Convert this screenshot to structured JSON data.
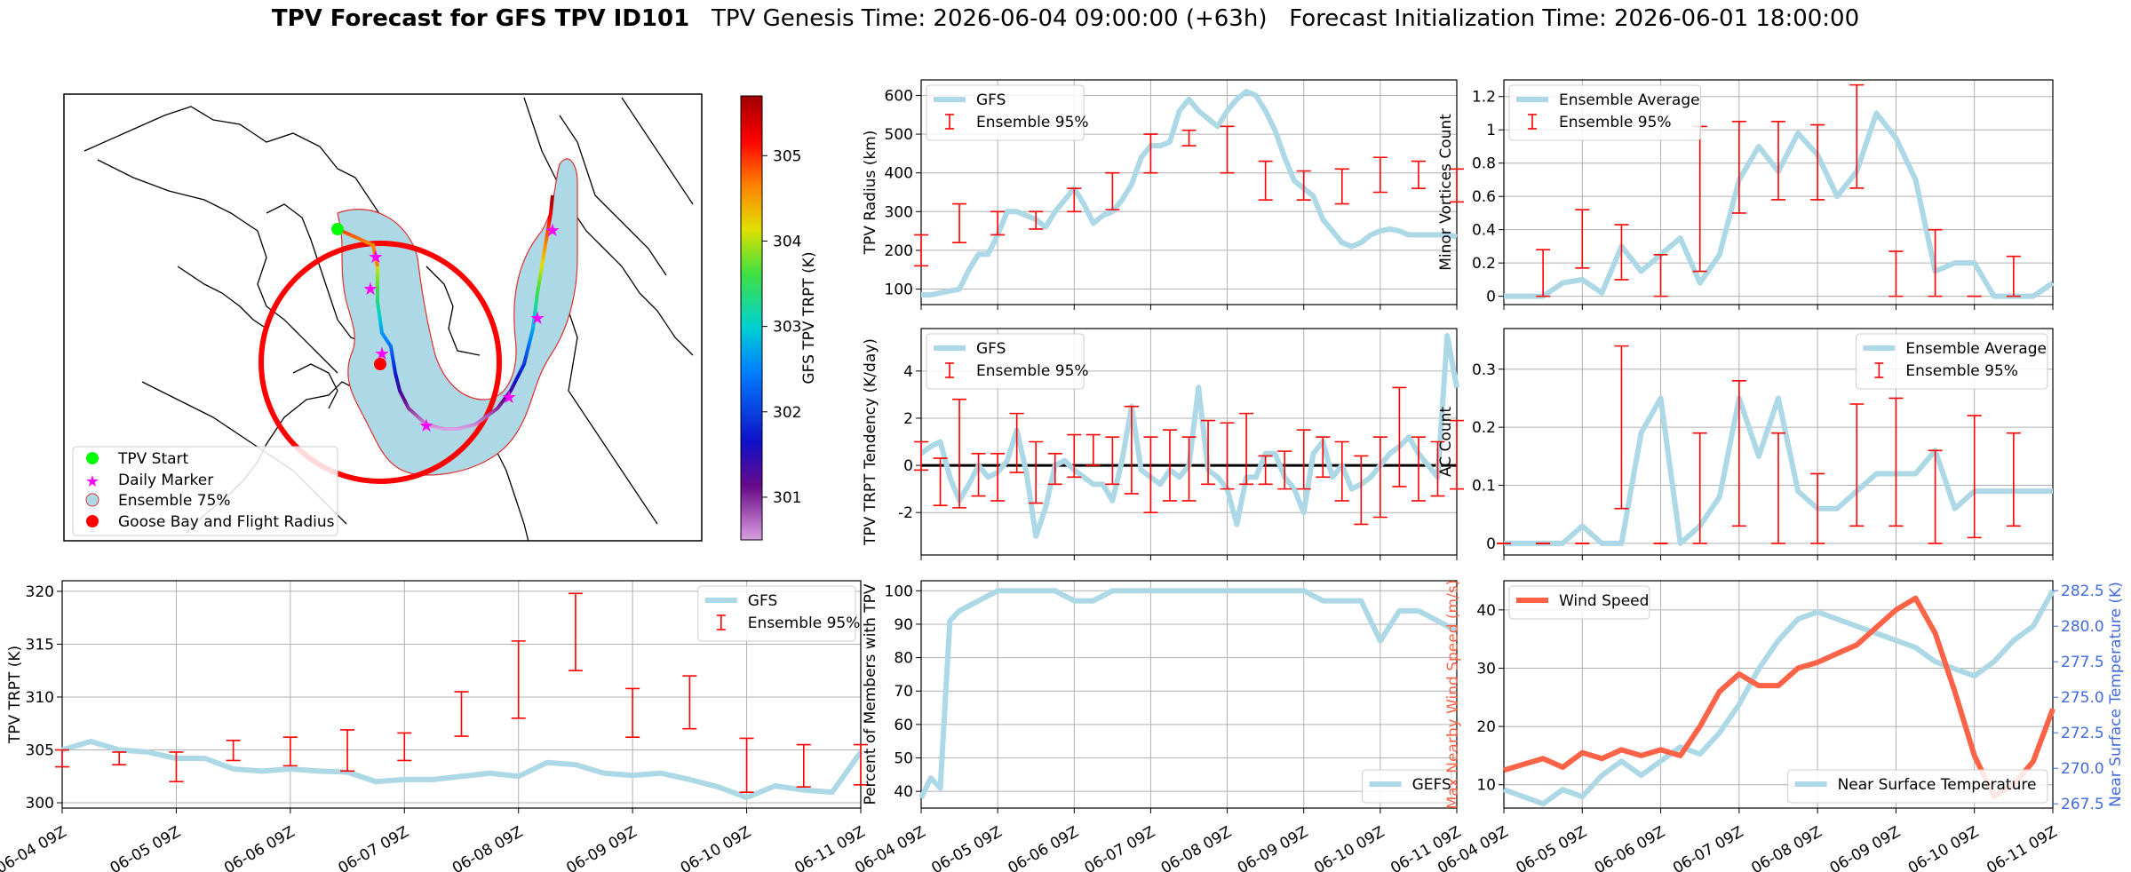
{
  "title": {
    "bold": "TPV Forecast for GFS TPV ID101",
    "rest": "   TPV Genesis Time: 2026-06-04 09:00:00 (+63h)   Forecast Initialization Time: 2026-06-01 18:00:00"
  },
  "colors": {
    "gfs": "#add8e6",
    "ens": "#ff0000",
    "wind": "#ff6347",
    "temp_axis": "#4169e1",
    "wind_axis": "#ff6347"
  },
  "dates": [
    "06-04 09Z",
    "06-05 09Z",
    "06-06 09Z",
    "06-07 09Z",
    "06-08 09Z",
    "06-09 09Z",
    "06-10 09Z",
    "06-11 09Z"
  ],
  "map": {
    "legend": [
      "TPV Start",
      "Daily Marker",
      "Ensemble 75%",
      "Goose Bay and Flight Radius"
    ],
    "colorbar": {
      "label": "GFS TPV TRPT (K)",
      "ticks": [
        "301",
        "302",
        "303",
        "304",
        "305"
      ],
      "range": [
        300.5,
        305.7
      ]
    }
  },
  "chart_data": [
    {
      "id": "radius",
      "type": "line",
      "ylabel": "TPV Radius (km)",
      "ylim": [
        60,
        640
      ],
      "yticks": [
        100,
        200,
        300,
        400,
        500,
        600
      ],
      "legend": [
        "GFS",
        "Ensemble 95%"
      ],
      "x": [
        0,
        0.125,
        0.25,
        0.375,
        0.5,
        0.625,
        0.75,
        0.875,
        1,
        1.125,
        1.25,
        1.375,
        1.5,
        1.625,
        1.75,
        1.875,
        2,
        2.125,
        2.25,
        2.375,
        2.5,
        2.625,
        2.75,
        2.875,
        3,
        3.125,
        3.25,
        3.375,
        3.5,
        3.625,
        3.75,
        3.875,
        4,
        4.125,
        4.25,
        4.375,
        4.5,
        4.625,
        4.75,
        4.875,
        5,
        5.125,
        5.25,
        5.375,
        5.5,
        5.625,
        5.75,
        5.875,
        6,
        6.125,
        6.25,
        6.375,
        6.5,
        6.625,
        6.75,
        6.875,
        7
      ],
      "values": [
        85,
        85,
        90,
        95,
        100,
        150,
        190,
        190,
        240,
        300,
        300,
        290,
        280,
        260,
        300,
        330,
        360,
        320,
        270,
        290,
        300,
        330,
        370,
        440,
        470,
        470,
        480,
        560,
        590,
        560,
        540,
        520,
        560,
        590,
        610,
        600,
        560,
        510,
        440,
        380,
        360,
        340,
        280,
        250,
        220,
        210,
        220,
        240,
        250,
        255,
        250,
        240,
        240,
        240,
        240,
        240,
        235
      ],
      "errors": [
        {
          "x": 0,
          "lo": 160,
          "hi": 240
        },
        {
          "x": 0.5,
          "lo": 220,
          "hi": 320
        },
        {
          "x": 1,
          "lo": 240,
          "hi": 300
        },
        {
          "x": 1.5,
          "lo": 255,
          "hi": 300
        },
        {
          "x": 2,
          "lo": 300,
          "hi": 360
        },
        {
          "x": 2.5,
          "lo": 305,
          "hi": 400
        },
        {
          "x": 3,
          "lo": 400,
          "hi": 500
        },
        {
          "x": 3.5,
          "lo": 470,
          "hi": 510
        },
        {
          "x": 4,
          "lo": 400,
          "hi": 520
        },
        {
          "x": 4.5,
          "lo": 330,
          "hi": 430
        },
        {
          "x": 5,
          "lo": 330,
          "hi": 405
        },
        {
          "x": 5.5,
          "lo": 320,
          "hi": 410
        },
        {
          "x": 6,
          "lo": 350,
          "hi": 440
        },
        {
          "x": 6.5,
          "lo": 360,
          "hi": 430
        },
        {
          "x": 7,
          "lo": 325,
          "hi": 410
        }
      ]
    },
    {
      "id": "minor",
      "type": "line",
      "ylabel": "Minor Vortices Count",
      "ylim": [
        -0.05,
        1.3
      ],
      "yticks": [
        0.0,
        0.2,
        0.4,
        0.6,
        0.8,
        1.0,
        1.2
      ],
      "legend": [
        "Ensemble Average",
        "Ensemble 95%"
      ],
      "x": [
        0,
        0.25,
        0.5,
        0.75,
        1,
        1.25,
        1.5,
        1.75,
        2,
        2.25,
        2.5,
        2.75,
        3,
        3.25,
        3.5,
        3.75,
        4,
        4.25,
        4.5,
        4.75,
        5,
        5.25,
        5.5,
        5.75,
        6,
        6.25,
        6.5,
        6.75,
        7
      ],
      "values": [
        0,
        0,
        0,
        0.08,
        0.1,
        0.02,
        0.3,
        0.15,
        0.25,
        0.35,
        0.08,
        0.25,
        0.7,
        0.9,
        0.75,
        0.98,
        0.85,
        0.6,
        0.75,
        1.1,
        0.95,
        0.7,
        0.15,
        0.2,
        0.2,
        0,
        0,
        0,
        0.08
      ],
      "errors": [
        {
          "x": 0.5,
          "lo": 0,
          "hi": 0.28
        },
        {
          "x": 1,
          "lo": 0.17,
          "hi": 0.52
        },
        {
          "x": 1.5,
          "lo": 0.1,
          "hi": 0.43
        },
        {
          "x": 2,
          "lo": 0,
          "hi": 0.25
        },
        {
          "x": 2.5,
          "lo": 0.15,
          "hi": 1.02
        },
        {
          "x": 3,
          "lo": 0.5,
          "hi": 1.05
        },
        {
          "x": 3.5,
          "lo": 0.58,
          "hi": 1.05
        },
        {
          "x": 4,
          "lo": 0.58,
          "hi": 1.03
        },
        {
          "x": 4.5,
          "lo": 0.65,
          "hi": 1.27
        },
        {
          "x": 5,
          "lo": 0,
          "hi": 0.27
        },
        {
          "x": 5.5,
          "lo": 0,
          "hi": 0.4
        },
        {
          "x": 6,
          "lo": 0,
          "hi": 0
        },
        {
          "x": 6.5,
          "lo": 0,
          "hi": 0.24
        }
      ]
    },
    {
      "id": "tendency",
      "type": "line",
      "ylabel": "TPV TRPT Tendency (K/day)",
      "ylim": [
        -3.8,
        5.8
      ],
      "yticks": [
        -2,
        0,
        2,
        4
      ],
      "legend": [
        "GFS",
        "Ensemble 95%"
      ],
      "x": [
        0,
        0.125,
        0.25,
        0.375,
        0.5,
        0.625,
        0.75,
        0.875,
        1,
        1.125,
        1.25,
        1.375,
        1.5,
        1.625,
        1.75,
        1.875,
        2,
        2.125,
        2.25,
        2.375,
        2.5,
        2.625,
        2.75,
        2.875,
        3,
        3.125,
        3.25,
        3.375,
        3.5,
        3.625,
        3.75,
        3.875,
        4,
        4.125,
        4.25,
        4.375,
        4.5,
        4.625,
        4.75,
        4.875,
        5,
        5.125,
        5.25,
        5.375,
        5.5,
        5.625,
        5.75,
        5.875,
        6,
        6.125,
        6.25,
        6.375,
        6.5,
        6.625,
        6.75,
        6.875,
        7
      ],
      "values": [
        0.5,
        0.8,
        1,
        -0.5,
        -1.5,
        -0.8,
        0,
        -0.5,
        -0.3,
        0.2,
        1.5,
        -0.3,
        -3,
        -1.8,
        0,
        0.2,
        -0.2,
        -0.5,
        -0.8,
        -0.8,
        -1.5,
        0.2,
        2.5,
        -0.2,
        -0.5,
        -0.8,
        -0.2,
        -0.5,
        0,
        3.3,
        -0.2,
        -0.5,
        -1,
        -2.5,
        -0.5,
        -0.5,
        0.5,
        0.5,
        -0.5,
        -1,
        -2,
        0.5,
        1,
        -0.5,
        0,
        -1,
        -0.8,
        -0.5,
        0,
        0.5,
        0.8,
        1.2,
        0.5,
        0,
        -0.5,
        5.5,
        3.3
      ],
      "errors": [
        {
          "x": 0,
          "lo": -0.2,
          "hi": 1
        },
        {
          "x": 0.25,
          "lo": -1.7,
          "hi": 0.3
        },
        {
          "x": 0.5,
          "lo": -1.8,
          "hi": 2.8
        },
        {
          "x": 0.75,
          "lo": -1.3,
          "hi": 0.5
        },
        {
          "x": 1,
          "lo": -1.5,
          "hi": 0.5
        },
        {
          "x": 1.25,
          "lo": -0.3,
          "hi": 2.2
        },
        {
          "x": 1.5,
          "lo": -1.6,
          "hi": 1
        },
        {
          "x": 1.75,
          "lo": -0.8,
          "hi": 0.5
        },
        {
          "x": 2,
          "lo": -0.5,
          "hi": 1.3
        },
        {
          "x": 2.25,
          "lo": 0,
          "hi": 1.3
        },
        {
          "x": 2.5,
          "lo": -0.8,
          "hi": 1.2
        },
        {
          "x": 2.75,
          "lo": -1.2,
          "hi": 2.5
        },
        {
          "x": 3,
          "lo": -2,
          "hi": 1.2
        },
        {
          "x": 3.25,
          "lo": -1.5,
          "hi": 1.5
        },
        {
          "x": 3.5,
          "lo": -1.5,
          "hi": 1.2
        },
        {
          "x": 3.75,
          "lo": -0.8,
          "hi": 1.9
        },
        {
          "x": 4,
          "lo": -1,
          "hi": 1.8
        },
        {
          "x": 4.25,
          "lo": -0.8,
          "hi": 2.2
        },
        {
          "x": 4.5,
          "lo": -0.8,
          "hi": 0.4
        },
        {
          "x": 4.75,
          "lo": -1,
          "hi": 0.6
        },
        {
          "x": 5,
          "lo": -1,
          "hi": 1.5
        },
        {
          "x": 5.25,
          "lo": -0.5,
          "hi": 1.2
        },
        {
          "x": 5.5,
          "lo": -1.5,
          "hi": 1
        },
        {
          "x": 5.75,
          "lo": -2.5,
          "hi": 0.4
        },
        {
          "x": 6,
          "lo": -2.2,
          "hi": 1.2
        },
        {
          "x": 6.25,
          "lo": -0.9,
          "hi": 3.3
        },
        {
          "x": 6.5,
          "lo": -1.5,
          "hi": 1.2
        },
        {
          "x": 6.75,
          "lo": -1.3,
          "hi": 1
        },
        {
          "x": 7,
          "lo": -1,
          "hi": 1.9
        }
      ]
    },
    {
      "id": "ac",
      "type": "line",
      "ylabel": "AC Count",
      "ylim": [
        -0.02,
        0.37
      ],
      "yticks": [
        0.0,
        0.1,
        0.2,
        0.3
      ],
      "legend": [
        "Ensemble Average",
        "Ensemble 95%"
      ],
      "x": [
        0,
        0.25,
        0.5,
        0.75,
        1,
        1.25,
        1.5,
        1.75,
        2,
        2.25,
        2.5,
        2.75,
        3,
        3.25,
        3.5,
        3.75,
        4,
        4.25,
        4.5,
        4.75,
        5,
        5.25,
        5.5,
        5.75,
        6,
        6.25,
        6.5,
        6.75,
        7
      ],
      "values": [
        0,
        0,
        0,
        0,
        0.03,
        0,
        0,
        0.19,
        0.25,
        0,
        0.03,
        0.08,
        0.25,
        0.15,
        0.25,
        0.09,
        0.06,
        0.06,
        0.09,
        0.12,
        0.12,
        0.12,
        0.16,
        0.06,
        0.09,
        0.09,
        0.09,
        0.09,
        0.09
      ],
      "errors": [
        {
          "x": 0,
          "lo": 0,
          "hi": 0
        },
        {
          "x": 0.5,
          "lo": 0,
          "hi": 0
        },
        {
          "x": 1,
          "lo": 0,
          "hi": 0
        },
        {
          "x": 1.5,
          "lo": 0.06,
          "hi": 0.34
        },
        {
          "x": 2,
          "lo": 0,
          "hi": 0
        },
        {
          "x": 2.5,
          "lo": 0,
          "hi": 0.19
        },
        {
          "x": 3,
          "lo": 0.03,
          "hi": 0.28
        },
        {
          "x": 3.5,
          "lo": 0,
          "hi": 0.19
        },
        {
          "x": 4,
          "lo": 0,
          "hi": 0.12
        },
        {
          "x": 4.5,
          "lo": 0.03,
          "hi": 0.24
        },
        {
          "x": 5,
          "lo": 0.03,
          "hi": 0.25
        },
        {
          "x": 5.5,
          "lo": 0,
          "hi": 0.16
        },
        {
          "x": 6,
          "lo": 0.01,
          "hi": 0.22
        },
        {
          "x": 6.5,
          "lo": 0.03,
          "hi": 0.19
        }
      ]
    },
    {
      "id": "trpt",
      "type": "line",
      "ylabel": "TPV TRPT (K)",
      "ylim": [
        299.5,
        321
      ],
      "yticks": [
        300,
        305,
        310,
        315,
        320
      ],
      "legend": [
        "GFS",
        "Ensemble 95%"
      ],
      "x": [
        0,
        0.25,
        0.5,
        0.75,
        1,
        1.25,
        1.5,
        1.75,
        2,
        2.25,
        2.5,
        2.75,
        3,
        3.25,
        3.5,
        3.75,
        4,
        4.25,
        4.5,
        4.75,
        5,
        5.25,
        5.5,
        5.75,
        6,
        6.25,
        6.5,
        6.75,
        7
      ],
      "values": [
        305,
        305.8,
        305,
        304.8,
        304.2,
        304.2,
        303.2,
        303,
        303.2,
        303,
        302.9,
        302,
        302.2,
        302.2,
        302.5,
        302.8,
        302.5,
        303.8,
        303.6,
        302.8,
        302.6,
        302.8,
        302.2,
        301.5,
        300.5,
        301.6,
        301.2,
        301,
        304.8
      ],
      "errors": [
        {
          "x": 0,
          "lo": 303.4,
          "hi": 305
        },
        {
          "x": 0.5,
          "lo": 303.6,
          "hi": 304.8
        },
        {
          "x": 1,
          "lo": 302,
          "hi": 304.8
        },
        {
          "x": 1.5,
          "lo": 304,
          "hi": 305.9
        },
        {
          "x": 2,
          "lo": 303.5,
          "hi": 306.2
        },
        {
          "x": 2.5,
          "lo": 303,
          "hi": 306.9
        },
        {
          "x": 3,
          "lo": 304,
          "hi": 306.6
        },
        {
          "x": 3.5,
          "lo": 306.3,
          "hi": 310.5
        },
        {
          "x": 4,
          "lo": 308,
          "hi": 315.3
        },
        {
          "x": 4.5,
          "lo": 312.5,
          "hi": 319.8
        },
        {
          "x": 5,
          "lo": 306.2,
          "hi": 310.8
        },
        {
          "x": 5.5,
          "lo": 307,
          "hi": 312
        },
        {
          "x": 6,
          "lo": 301,
          "hi": 306.1
        },
        {
          "x": 6.5,
          "lo": 301.5,
          "hi": 305.5
        },
        {
          "x": 7,
          "lo": 301.7,
          "hi": 305.5
        }
      ]
    },
    {
      "id": "percent",
      "type": "line",
      "ylabel": "Percent of Members with TPV",
      "ylim": [
        35,
        103
      ],
      "yticks": [
        40,
        50,
        60,
        70,
        80,
        90,
        100
      ],
      "legend": [
        "GEFS"
      ],
      "x": [
        0,
        0.125,
        0.25,
        0.375,
        0.5,
        0.75,
        1,
        1.25,
        1.5,
        1.75,
        2,
        2.25,
        2.5,
        2.75,
        3,
        3.25,
        3.5,
        3.75,
        4,
        4.25,
        4.5,
        4.75,
        5,
        5.25,
        5.5,
        5.75,
        6,
        6.25,
        6.5,
        6.75,
        7
      ],
      "values": [
        38,
        44,
        41,
        91,
        94,
        97,
        100,
        100,
        100,
        100,
        97,
        97,
        100,
        100,
        100,
        100,
        100,
        100,
        100,
        100,
        100,
        100,
        100,
        97,
        97,
        97,
        85,
        94,
        94,
        91,
        88
      ]
    },
    {
      "id": "wind_temp",
      "type": "line",
      "ylabel": "Max Nearby Wind Speed (m/s)",
      "ylabel2": "Near Surface Temperature (K)",
      "ylim": [
        6,
        45
      ],
      "yticks": [
        10,
        20,
        30,
        40
      ],
      "ylim2": [
        267.2,
        283.2
      ],
      "yticks2": [
        "267.5",
        "270.0",
        "272.5",
        "275.0",
        "277.5",
        "280.0",
        "282.5"
      ],
      "legend": [
        "Wind Speed"
      ],
      "legend2": [
        "Near Surface Temperature"
      ],
      "x": [
        0,
        0.25,
        0.5,
        0.75,
        1,
        1.25,
        1.5,
        1.75,
        2,
        2.25,
        2.5,
        2.75,
        3,
        3.25,
        3.5,
        3.75,
        4,
        4.25,
        4.5,
        4.75,
        5,
        5.25,
        5.5,
        5.75,
        6,
        6.25,
        6.5,
        6.75,
        7
      ],
      "wind": [
        12.5,
        13.5,
        14.5,
        13,
        15.5,
        14.5,
        16,
        15,
        16,
        15,
        20,
        26,
        29,
        27,
        27,
        30,
        31,
        32.5,
        34,
        37,
        40,
        42,
        36,
        26,
        15,
        8,
        10,
        14,
        23
      ],
      "temp": [
        268.5,
        268,
        267.5,
        268.5,
        268,
        269.5,
        270.5,
        269.5,
        270.5,
        271.5,
        271,
        272.5,
        274.5,
        277,
        279,
        280.5,
        281,
        280.5,
        280,
        279.5,
        279,
        278.5,
        277.5,
        277,
        276.5,
        277.5,
        279,
        280,
        282.5
      ]
    }
  ]
}
